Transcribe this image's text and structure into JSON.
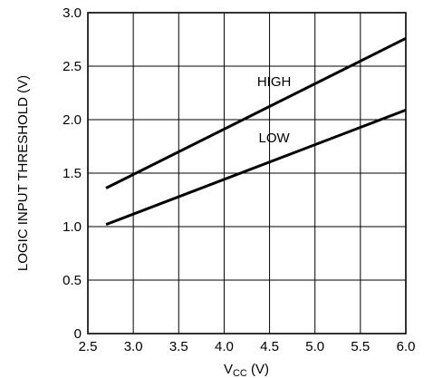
{
  "chart_data": {
    "type": "line",
    "title": "",
    "xlabel_main": "V",
    "xlabel_sub": "CC",
    "xlabel_unit": " (V)",
    "ylabel": "LOGIC INPUT THRESHOLD (V)",
    "xlim": [
      2.5,
      6.0
    ],
    "ylim": [
      0,
      3.0
    ],
    "x_ticks": [
      "2.5",
      "3.0",
      "3.5",
      "4.0",
      "4.5",
      "5.0",
      "5.5",
      "6.0"
    ],
    "y_ticks": [
      "0",
      "0.5",
      "1.0",
      "1.5",
      "2.0",
      "2.5",
      "3.0"
    ],
    "grid": true,
    "series": [
      {
        "name": "HIGH",
        "x": [
          2.7,
          6.0
        ],
        "y": [
          1.36,
          2.76
        ]
      },
      {
        "name": "LOW",
        "x": [
          2.7,
          6.0
        ],
        "y": [
          1.02,
          2.09
        ]
      }
    ]
  }
}
